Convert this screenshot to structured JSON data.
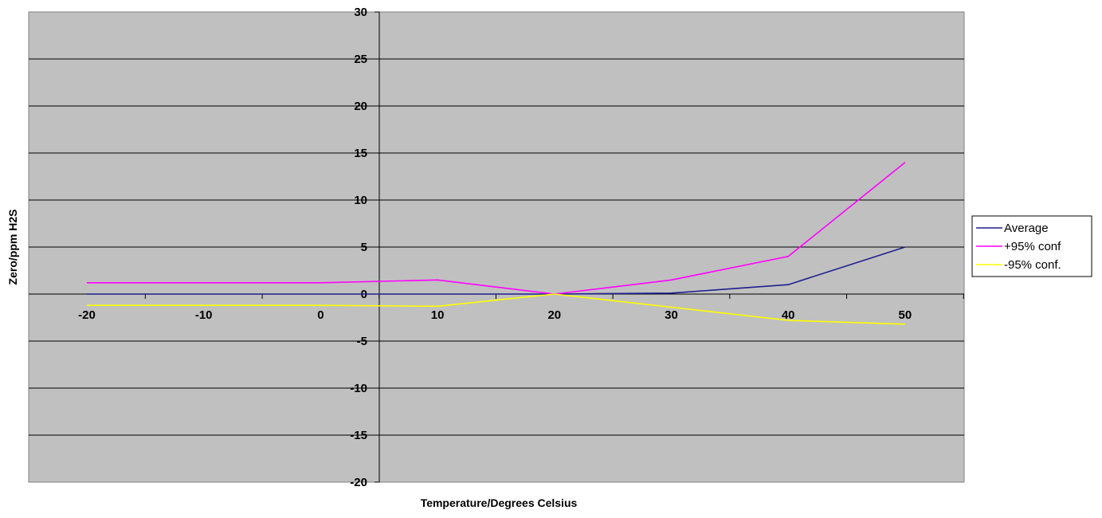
{
  "chart_data": {
    "type": "line",
    "title": "",
    "xlabel": "Temperature/Degrees Celsius",
    "ylabel": "Zero/ppm H2S",
    "x": [
      -20,
      -10,
      0,
      10,
      20,
      30,
      40,
      50
    ],
    "x_tick_labels": [
      "-20",
      "-10",
      "0",
      "10",
      "20",
      "30",
      "40",
      "50"
    ],
    "ylim": [
      -20,
      30
    ],
    "y_ticks": [
      30,
      25,
      20,
      15,
      10,
      5,
      0,
      -5,
      -10,
      -15,
      -20
    ],
    "y_tick_labels": [
      "30",
      "25",
      "20",
      "15",
      "10",
      "5",
      "0",
      "-5",
      "-10",
      "-15",
      "-20"
    ],
    "grid": "horizontal",
    "legend_position": "right",
    "plot_background": "#c0c0c0",
    "series": [
      {
        "name": "Average",
        "color": "#1f1f8f",
        "values": [
          0,
          0,
          0,
          0,
          0,
          0.1,
          1,
          5
        ]
      },
      {
        "name": "+95% conf",
        "color": "#ff00ff",
        "values": [
          1.2,
          1.2,
          1.2,
          1.5,
          0,
          1.5,
          4,
          14
        ]
      },
      {
        "name": "-95% conf.",
        "color": "#ffff00",
        "values": [
          -1.2,
          -1.2,
          -1.2,
          -1.3,
          0,
          -1.4,
          -2.8,
          -3.2
        ]
      }
    ]
  }
}
